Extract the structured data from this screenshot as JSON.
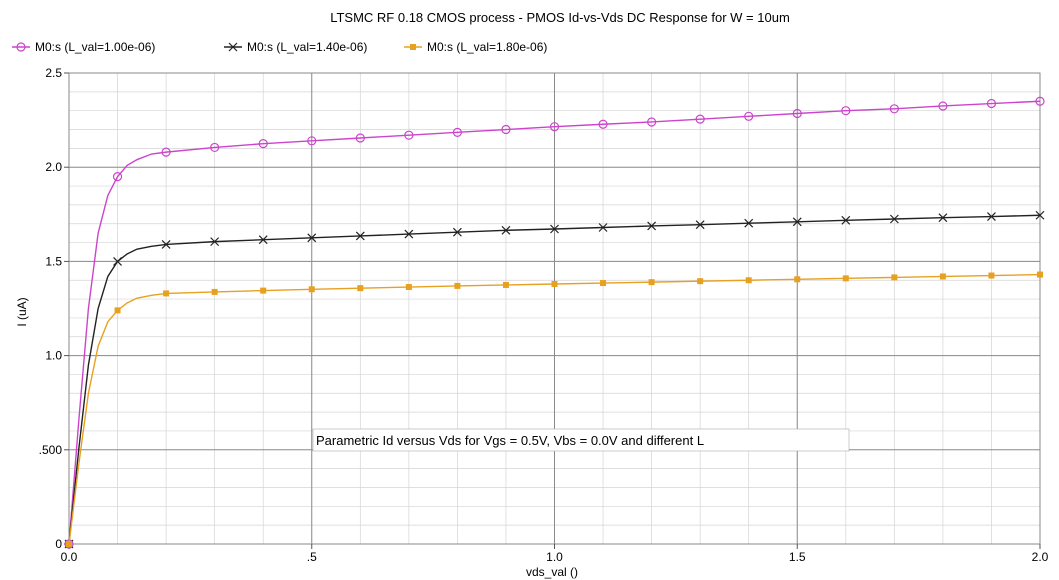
{
  "chart_data": {
    "type": "line",
    "title": "LTSMC RF 0.18 CMOS process - PMOS Id-vs-Vds DC Response for W = 10um",
    "xlabel": "vds_val ()",
    "ylabel": "I (uA)",
    "xlim": [
      0,
      2.0
    ],
    "ylim": [
      0,
      2.5
    ],
    "x_ticks": [
      {
        "value": 0,
        "label": "0.0"
      },
      {
        "value": 0.5,
        "label": ".5"
      },
      {
        "value": 1.0,
        "label": "1.0"
      },
      {
        "value": 1.5,
        "label": "1.5"
      },
      {
        "value": 2.0,
        "label": "2.0"
      }
    ],
    "y_ticks": [
      {
        "value": 0,
        "label": "0"
      },
      {
        "value": 0.5,
        "label": ".500"
      },
      {
        "value": 1.0,
        "label": "1.0"
      },
      {
        "value": 1.5,
        "label": "1.5"
      },
      {
        "value": 2.0,
        "label": "2.0"
      },
      {
        "value": 2.5,
        "label": "2.5"
      }
    ],
    "x_minor_step": 0.1,
    "y_minor_step": 0.1,
    "grid": true,
    "legend_position": "top-left",
    "annotation": "Parametric Id versus Vds for Vgs = 0.5V, Vbs = 0.0V and different L",
    "series": [
      {
        "name": "M0:s (L_val=1.00e-06)",
        "color": "#cc44cc",
        "marker": "circle",
        "x": [
          0,
          0.02,
          0.04,
          0.06,
          0.08,
          0.1,
          0.12,
          0.14,
          0.17,
          0.2,
          0.3,
          0.4,
          0.5,
          0.6,
          0.7,
          0.8,
          0.9,
          1.0,
          1.1,
          1.2,
          1.3,
          1.4,
          1.5,
          1.6,
          1.7,
          1.8,
          1.9,
          2.0
        ],
        "y": [
          0,
          0.65,
          1.25,
          1.65,
          1.85,
          1.95,
          2.01,
          2.04,
          2.07,
          2.08,
          2.105,
          2.125,
          2.14,
          2.155,
          2.17,
          2.185,
          2.2,
          2.215,
          2.228,
          2.24,
          2.255,
          2.27,
          2.285,
          2.3,
          2.31,
          2.325,
          2.338,
          2.35
        ],
        "marker_x": [
          0,
          0.1,
          0.2,
          0.3,
          0.4,
          0.5,
          0.6,
          0.7,
          0.8,
          0.9,
          1.0,
          1.1,
          1.2,
          1.3,
          1.4,
          1.5,
          1.6,
          1.7,
          1.8,
          1.9,
          2.0
        ]
      },
      {
        "name": "M0:s (L_val=1.40e-06)",
        "color": "#222222",
        "marker": "x",
        "x": [
          0,
          0.02,
          0.04,
          0.06,
          0.08,
          0.1,
          0.12,
          0.14,
          0.17,
          0.2,
          0.3,
          0.4,
          0.5,
          0.6,
          0.7,
          0.8,
          0.9,
          1.0,
          1.1,
          1.2,
          1.3,
          1.4,
          1.5,
          1.6,
          1.7,
          1.8,
          1.9,
          2.0
        ],
        "y": [
          0,
          0.5,
          0.95,
          1.25,
          1.42,
          1.5,
          1.54,
          1.565,
          1.58,
          1.59,
          1.605,
          1.615,
          1.625,
          1.635,
          1.645,
          1.655,
          1.665,
          1.672,
          1.68,
          1.688,
          1.695,
          1.703,
          1.71,
          1.718,
          1.725,
          1.732,
          1.738,
          1.745
        ],
        "marker_x": [
          0,
          0.1,
          0.2,
          0.3,
          0.4,
          0.5,
          0.6,
          0.7,
          0.8,
          0.9,
          1.0,
          1.1,
          1.2,
          1.3,
          1.4,
          1.5,
          1.6,
          1.7,
          1.8,
          1.9,
          2.0
        ]
      },
      {
        "name": "M0:s (L_val=1.80e-06)",
        "color": "#e8a020",
        "marker": "square",
        "x": [
          0,
          0.02,
          0.04,
          0.06,
          0.08,
          0.1,
          0.12,
          0.14,
          0.17,
          0.2,
          0.3,
          0.4,
          0.5,
          0.6,
          0.7,
          0.8,
          0.9,
          1.0,
          1.1,
          1.2,
          1.3,
          1.4,
          1.5,
          1.6,
          1.7,
          1.8,
          1.9,
          2.0
        ],
        "y": [
          0,
          0.42,
          0.8,
          1.05,
          1.18,
          1.24,
          1.28,
          1.305,
          1.32,
          1.33,
          1.338,
          1.345,
          1.352,
          1.358,
          1.364,
          1.37,
          1.375,
          1.38,
          1.385,
          1.39,
          1.395,
          1.4,
          1.405,
          1.41,
          1.415,
          1.42,
          1.425,
          1.43
        ],
        "marker_x": [
          0,
          0.1,
          0.2,
          0.3,
          0.4,
          0.5,
          0.6,
          0.7,
          0.8,
          0.9,
          1.0,
          1.1,
          1.2,
          1.3,
          1.4,
          1.5,
          1.6,
          1.7,
          1.8,
          1.9,
          2.0
        ]
      }
    ]
  }
}
